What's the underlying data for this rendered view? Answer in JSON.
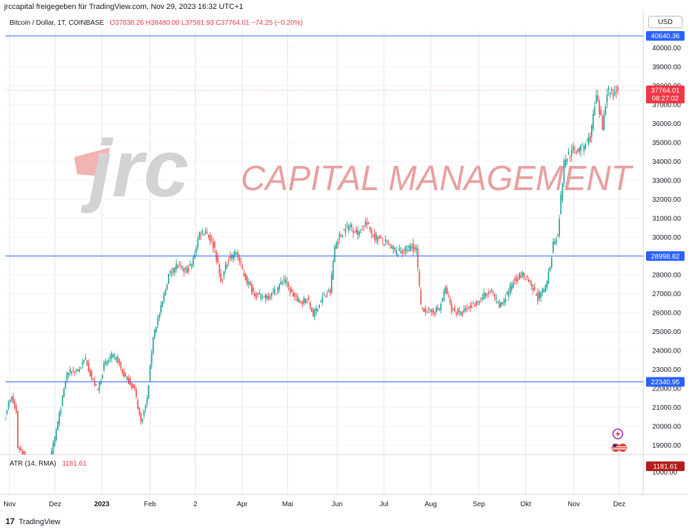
{
  "header": {
    "attribution": "jrccapital freigegeben für TradingView.com, Nov 29, 2023 16:32 UTC+1"
  },
  "legend": {
    "symbol": "Bitcoin / Dollar, 1T, COINBASE",
    "open": "O37838.26",
    "high": "H38480.00",
    "low": "L37581.93",
    "close": "C37764.01",
    "change": "−74.25 (−0.20%)"
  },
  "currency": "USD",
  "watermark": {
    "logo_text": "jrc",
    "tagline": "CAPITAL MANAGEMENT"
  },
  "indicator": {
    "name": "ATR (14, RMA)",
    "value": "1181.61",
    "axis_value": "1000.00"
  },
  "footer": {
    "brand": "TradingView",
    "mark": "17"
  },
  "colors": {
    "up": "#26a69a",
    "down": "#ef5350",
    "level_line": "#2962ff",
    "price_tag": "#f23645",
    "grid": "#e0e3eb",
    "watermark": "#e8a0a0"
  },
  "icons": [
    "lightning-icon",
    "flags-icon"
  ],
  "chart_data": {
    "type": "candlestick",
    "title": "Bitcoin / Dollar, 1T, COINBASE",
    "y_range": [
      18500,
      40900
    ],
    "y_ticks": [
      "40000.00",
      "39000.00",
      "38000.00",
      "37000.00",
      "36000.00",
      "35000.00",
      "34000.00",
      "33000.00",
      "32000.00",
      "31000.00",
      "30000.00",
      "29000.00",
      "28000.00",
      "27000.00",
      "26000.00",
      "25000.00",
      "24000.00",
      "23000.00",
      "22000.00",
      "21000.00",
      "20000.00",
      "19000.00"
    ],
    "x_ticks": [
      "Nov",
      "Dez",
      "2023",
      "Feb",
      "2",
      "Apr",
      "Mai",
      "Jun",
      "Jul",
      "Aug",
      "Sep",
      "Okt",
      "Nov",
      "Dez"
    ],
    "horizontal_levels": [
      {
        "value": 40640.36,
        "label": "40640.36"
      },
      {
        "value": 28998.82,
        "label": "28998.82"
      },
      {
        "value": 22340.95,
        "label": "22340.95"
      }
    ],
    "last_price": {
      "value": 37764.01,
      "label": "37764.01",
      "countdown": "08:27:02"
    },
    "anchors": [
      [
        0,
        20600
      ],
      [
        2,
        21200
      ],
      [
        4,
        21500
      ],
      [
        7,
        20700
      ],
      [
        8,
        18900
      ],
      [
        25,
        17200
      ],
      [
        29,
        18200
      ],
      [
        36,
        21000
      ],
      [
        40,
        22800
      ],
      [
        48,
        23000
      ],
      [
        52,
        23600
      ],
      [
        56,
        22500
      ],
      [
        60,
        21900
      ],
      [
        64,
        23200
      ],
      [
        69,
        23700
      ],
      [
        73,
        23500
      ],
      [
        76,
        22800
      ],
      [
        80,
        22400
      ],
      [
        84,
        21900
      ],
      [
        88,
        20200
      ],
      [
        92,
        21400
      ],
      [
        96,
        24800
      ],
      [
        101,
        26200
      ],
      [
        106,
        28000
      ],
      [
        111,
        28500
      ],
      [
        116,
        28200
      ],
      [
        121,
        28500
      ],
      [
        126,
        30200
      ],
      [
        130,
        30400
      ],
      [
        136,
        29400
      ],
      [
        140,
        27600
      ],
      [
        145,
        28900
      ],
      [
        150,
        29200
      ],
      [
        155,
        28000
      ],
      [
        160,
        27200
      ],
      [
        166,
        26800
      ],
      [
        171,
        26900
      ],
      [
        176,
        27200
      ],
      [
        181,
        27800
      ],
      [
        186,
        27000
      ],
      [
        191,
        26600
      ],
      [
        196,
        26700
      ],
      [
        200,
        25900
      ],
      [
        206,
        26800
      ],
      [
        211,
        27100
      ],
      [
        214,
        29500
      ],
      [
        219,
        30300
      ],
      [
        224,
        30600
      ],
      [
        229,
        30200
      ],
      [
        234,
        30800
      ],
      [
        239,
        30100
      ],
      [
        244,
        29800
      ],
      [
        249,
        29600
      ],
      [
        254,
        29200
      ],
      [
        259,
        29300
      ],
      [
        264,
        29500
      ],
      [
        267,
        29300
      ],
      [
        270,
        26300
      ],
      [
        276,
        26000
      ],
      [
        282,
        26200
      ],
      [
        286,
        27300
      ],
      [
        290,
        26200
      ],
      [
        296,
        25900
      ],
      [
        300,
        26200
      ],
      [
        306,
        26500
      ],
      [
        311,
        26900
      ],
      [
        316,
        27100
      ],
      [
        321,
        26300
      ],
      [
        326,
        27000
      ],
      [
        331,
        27800
      ],
      [
        336,
        28000
      ],
      [
        341,
        27500
      ],
      [
        346,
        26800
      ],
      [
        351,
        27300
      ],
      [
        354,
        28500
      ],
      [
        356,
        29700
      ],
      [
        359,
        30200
      ],
      [
        363,
        33900
      ],
      [
        366,
        34400
      ],
      [
        370,
        34600
      ],
      [
        375,
        34700
      ],
      [
        380,
        35300
      ],
      [
        384,
        37400
      ],
      [
        388,
        35800
      ],
      [
        391,
        37800
      ],
      [
        395,
        37600
      ],
      [
        397,
        37820
      ],
      [
        398,
        37764
      ]
    ],
    "atr_value": 1181.61
  }
}
